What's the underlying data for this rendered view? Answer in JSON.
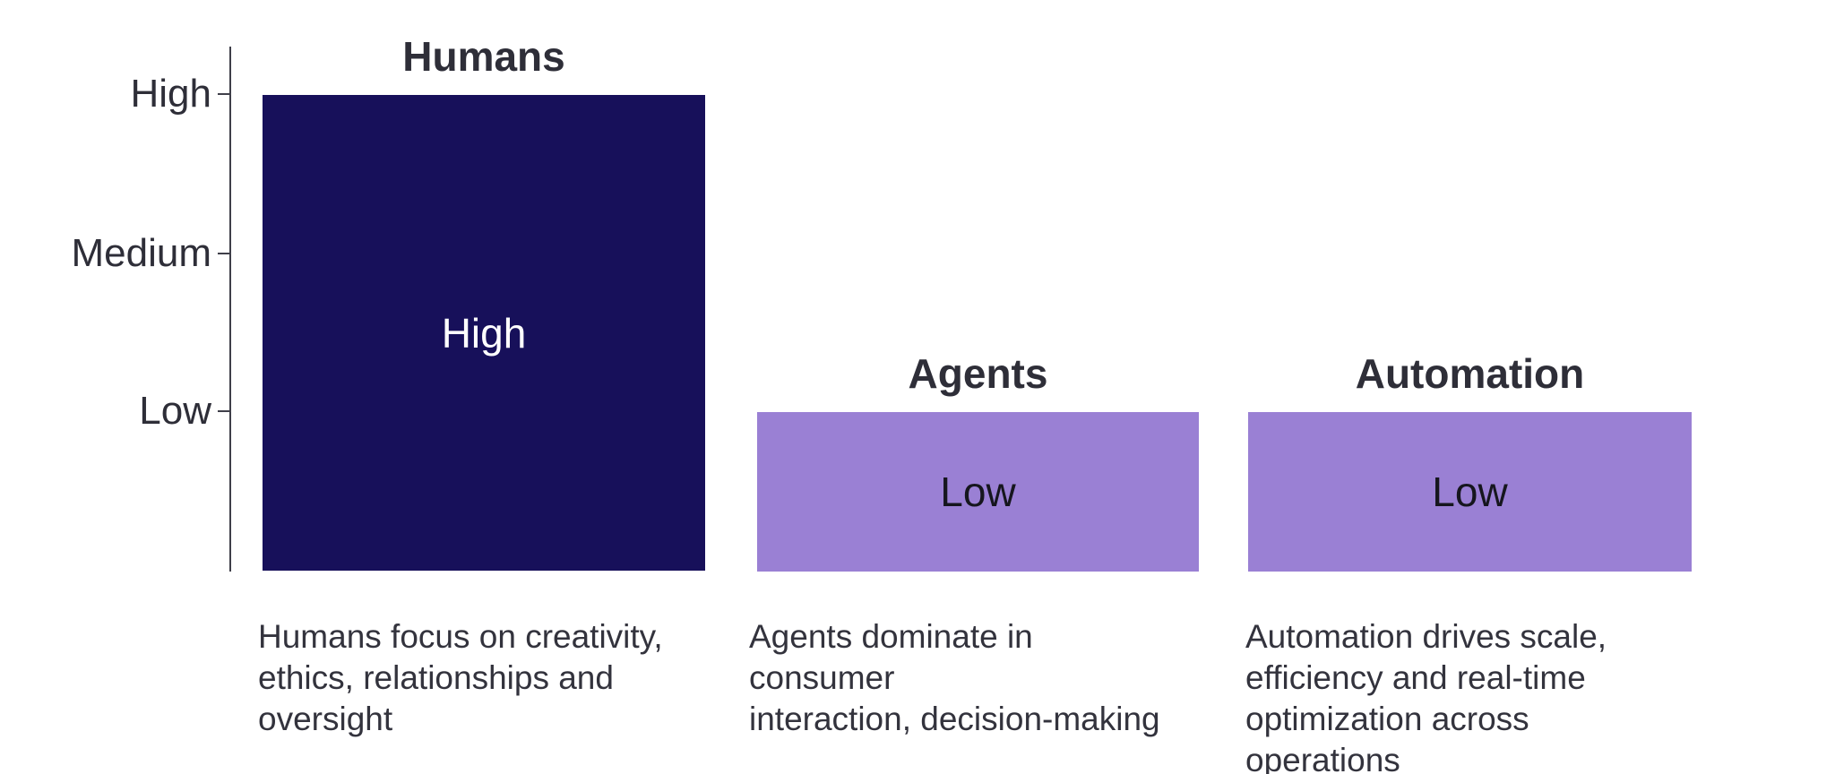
{
  "chart_data": {
    "type": "bar",
    "categories": [
      "Humans",
      "Agents",
      "Automation"
    ],
    "values": [
      3,
      1,
      1
    ],
    "value_labels": [
      "High",
      "Low",
      "Low"
    ],
    "yticks": [
      {
        "label": "High",
        "value": 3
      },
      {
        "label": "Medium",
        "value": 2
      },
      {
        "label": "Low",
        "value": 1
      }
    ],
    "ylim": [
      0,
      3.3
    ],
    "title": "",
    "xlabel": "",
    "ylabel": "",
    "grid": false,
    "legend": "none",
    "bar_colors": [
      "#17105a",
      "#9a80d4",
      "#9a80d4"
    ],
    "bar_label_colors": [
      "#ffffff",
      "#16161e",
      "#16161e"
    ],
    "annotations": [
      "Humans focus on creativity, ethics, relationships and oversight",
      "Agents dominate in consumer interaction, decision-making",
      "Automation drives scale, efficiency and real-time optimization across operations"
    ]
  },
  "axis": {
    "ticks": [
      {
        "label": "High"
      },
      {
        "label": "Medium"
      },
      {
        "label": "Low"
      }
    ]
  },
  "bars": [
    {
      "title": "Humans",
      "value_label": "High",
      "caption": "Humans focus on creativity,\nethics, relationships and\noversight"
    },
    {
      "title": "Agents",
      "value_label": "Low",
      "caption": "Agents dominate in consumer\ninteraction, decision-making"
    },
    {
      "title": "Automation",
      "value_label": "Low",
      "caption": "Automation drives scale,\nefficiency and real-time\noptimization across operations"
    }
  ],
  "colors": {
    "bar_high": "#17105a",
    "bar_low": "#9a80d4",
    "text_dark": "#2e2e38",
    "axis": "#3f3f49",
    "background": "#ffffff"
  }
}
